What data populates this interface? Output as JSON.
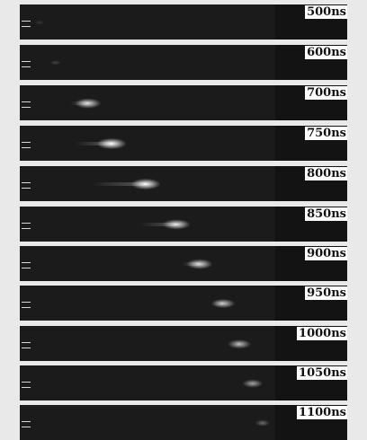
{
  "frames": [
    {
      "label": "500ns",
      "intensity": 0.12,
      "spot": 22,
      "tail": 0
    },
    {
      "label": "600ns",
      "intensity": 0.18,
      "spot": 40,
      "tail": 0
    },
    {
      "label": "700ns",
      "intensity": 0.85,
      "spot": 76,
      "tail": 20
    },
    {
      "label": "750ns",
      "intensity": 1.0,
      "spot": 102,
      "tail": 40
    },
    {
      "label": "800ns",
      "intensity": 1.0,
      "spot": 140,
      "tail": 60
    },
    {
      "label": "850ns",
      "intensity": 0.9,
      "spot": 174,
      "tail": 40
    },
    {
      "label": "900ns",
      "intensity": 0.85,
      "spot": 200,
      "tail": 20
    },
    {
      "label": "950ns",
      "intensity": 0.75,
      "spot": 226,
      "tail": 10
    },
    {
      "label": "1000ns",
      "intensity": 0.7,
      "spot": 244,
      "tail": 5
    },
    {
      "label": "1050ns",
      "intensity": 0.6,
      "spot": 259,
      "tail": 0
    },
    {
      "label": "1100ns",
      "intensity": 0.35,
      "spot": 270,
      "tail": 0
    }
  ]
}
